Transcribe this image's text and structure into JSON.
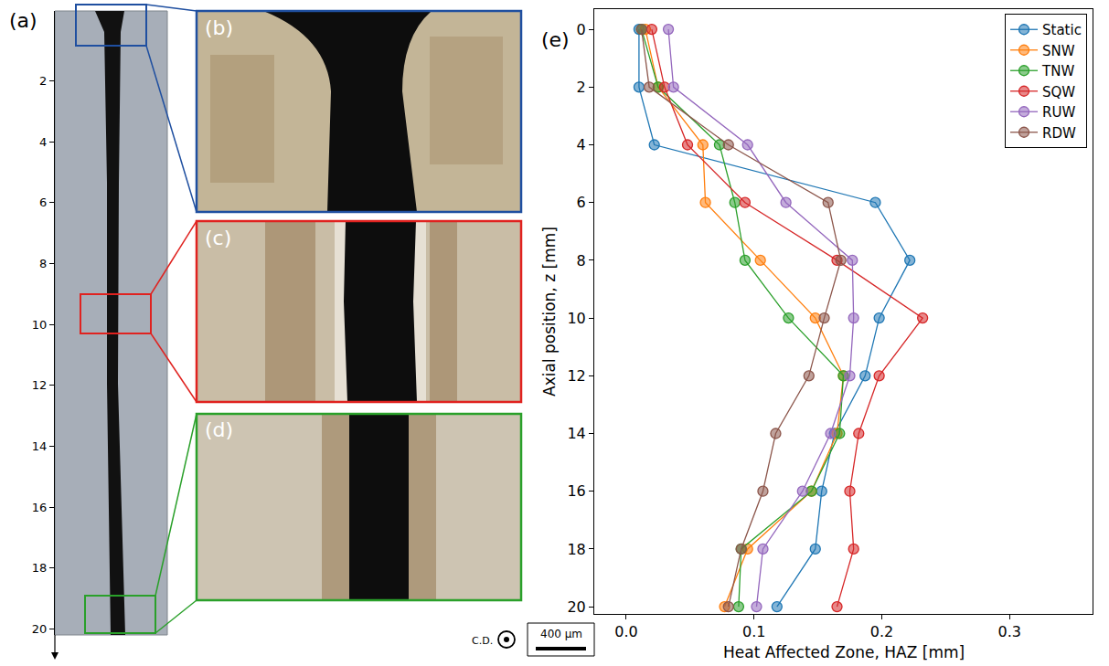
{
  "figure": {
    "panel_labels": [
      "(a)",
      "(b)",
      "(c)",
      "(d)",
      "(e)"
    ],
    "axial_range": [
      20.2,
      -0.3
    ],
    "axial_ticks": [
      2,
      4,
      6,
      8,
      10,
      12,
      14,
      16,
      18,
      20
    ],
    "direction_label": "C.D.",
    "scale_bar": "400 μm"
  },
  "chart_data": {
    "type": "line",
    "x_label": "Heat Affected Zone, HAZ [mm]",
    "y_label": "Axial position, z [mm]",
    "y": [
      0,
      2,
      4,
      6,
      8,
      10,
      12,
      14,
      16,
      18,
      20
    ],
    "series": [
      {
        "name": "Static",
        "color": "#1f77b4",
        "values": [
          0.01,
          0.01,
          0.022,
          0.195,
          0.222,
          0.198,
          0.187,
          0.163,
          0.153,
          0.148,
          0.118
        ]
      },
      {
        "name": "SNW",
        "color": "#ff7f0e",
        "values": [
          0.015,
          0.025,
          0.06,
          0.062,
          0.105,
          0.148,
          0.17,
          0.165,
          0.145,
          0.095,
          0.077
        ]
      },
      {
        "name": "TNW",
        "color": "#2ca02c",
        "values": [
          0.012,
          0.025,
          0.073,
          0.085,
          0.093,
          0.127,
          0.17,
          0.167,
          0.145,
          0.09,
          0.088
        ]
      },
      {
        "name": "SQW",
        "color": "#d62728",
        "values": [
          0.02,
          0.03,
          0.048,
          0.093,
          0.165,
          0.232,
          0.198,
          0.182,
          0.175,
          0.178,
          0.165
        ]
      },
      {
        "name": "RUW",
        "color": "#9467bd",
        "values": [
          0.033,
          0.037,
          0.095,
          0.125,
          0.177,
          0.178,
          0.175,
          0.16,
          0.138,
          0.107,
          0.102
        ]
      },
      {
        "name": "RDW",
        "color": "#8c564b",
        "values": [
          0.012,
          0.018,
          0.08,
          0.158,
          0.168,
          0.155,
          0.143,
          0.117,
          0.107,
          0.09,
          0.08
        ]
      }
    ],
    "xlim": [
      -0.025,
      0.365
    ],
    "xticks": [
      {
        "value": 0,
        "label": "0.0"
      },
      0.1,
      0.2,
      0.3
    ],
    "ylim": [
      20.25,
      -0.7
    ],
    "yticks": [
      0,
      2,
      4,
      6,
      8,
      10,
      12,
      14,
      16,
      18,
      20
    ],
    "marker": "circle",
    "line_style": "solid",
    "grid": false,
    "legend": "upper right"
  }
}
